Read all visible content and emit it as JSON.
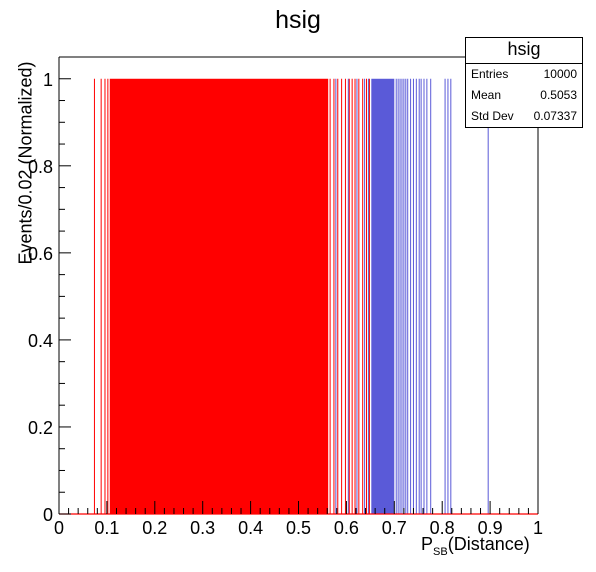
{
  "title": "hsig",
  "stats": {
    "title": "hsig",
    "rows": [
      {
        "key": "Entries",
        "value": "10000"
      },
      {
        "key": "Mean",
        "value": "0.5053"
      },
      {
        "key": "Std Dev",
        "value": "0.07337"
      }
    ]
  },
  "colors": {
    "signal": "#ff0000",
    "background": "#5a5ad8",
    "axis": "#000000"
  },
  "chart_data": {
    "type": "bar",
    "title": "hsig",
    "xlabel_main": "P",
    "xlabel_sub": "SB",
    "xlabel_tail": "(Distance)",
    "ylabel": "Events/0.02 (Normalized)",
    "xlim": [
      0,
      1
    ],
    "ylim": [
      0,
      1.05
    ],
    "x_ticks": [
      "0",
      "0.1",
      "0.2",
      "0.3",
      "0.4",
      "0.5",
      "0.6",
      "0.7",
      "0.8",
      "0.9",
      "1"
    ],
    "y_ticks": [
      "0",
      "0.2",
      "0.4",
      "0.6",
      "0.8",
      "1"
    ],
    "series": [
      {
        "name": "hsig",
        "color": "#ff0000",
        "filled_range": [
          0.106,
          0.562
        ],
        "lines_x": [
          0.074,
          0.088,
          0.096,
          0.102,
          0.566,
          0.574,
          0.582,
          0.59,
          0.598,
          0.606,
          0.612,
          0.618,
          0.626,
          0.634,
          0.642,
          0.648
        ]
      },
      {
        "color": "#5a5ad8",
        "filled_range": [
          0.652,
          0.7
        ],
        "lines_x": [
          0.578,
          0.604,
          0.622,
          0.638,
          0.646,
          0.704,
          0.708,
          0.712,
          0.716,
          0.72,
          0.724,
          0.728,
          0.734,
          0.74,
          0.746,
          0.752,
          0.756,
          0.762,
          0.768,
          0.776,
          0.806,
          0.812,
          0.818,
          0.896
        ]
      }
    ]
  }
}
